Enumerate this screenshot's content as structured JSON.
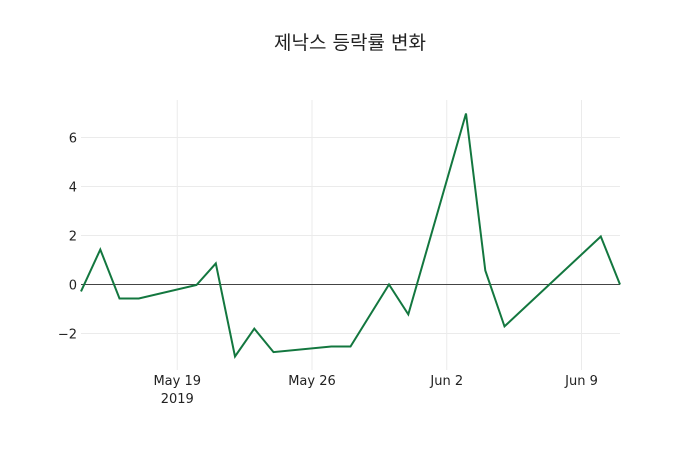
{
  "chart_data": {
    "type": "line",
    "title": "제낙스 등락률 변화",
    "xlabel": "",
    "ylabel": "",
    "x": [
      "2019-05-14",
      "2019-05-15",
      "2019-05-16",
      "2019-05-17",
      "2019-05-20",
      "2019-05-21",
      "2019-05-22",
      "2019-05-23",
      "2019-05-24",
      "2019-05-27",
      "2019-05-28",
      "2019-05-30",
      "2019-05-31",
      "2019-06-03",
      "2019-06-04",
      "2019-06-05",
      "2019-06-10",
      "2019-06-11"
    ],
    "series": [
      {
        "name": "등락률",
        "color": "#13773f",
        "values": [
          -0.28,
          1.43,
          -0.57,
          -0.57,
          -0.02,
          0.86,
          -2.94,
          -1.8,
          -2.76,
          -2.53,
          -2.53,
          0.0,
          -1.22,
          6.98,
          0.57,
          -1.71,
          1.96,
          0.0
        ]
      }
    ],
    "xticks": [
      {
        "date": "2019-05-19",
        "label": "May 19",
        "sublabel": "2019"
      },
      {
        "date": "2019-05-26",
        "label": "May 26",
        "sublabel": ""
      },
      {
        "date": "2019-06-02",
        "label": "Jun 2",
        "sublabel": ""
      },
      {
        "date": "2019-06-09",
        "label": "Jun 9",
        "sublabel": ""
      }
    ],
    "yticks": [
      -2,
      0,
      2,
      4,
      6
    ],
    "ytick_labels": [
      "−2",
      "0",
      "2",
      "4",
      "6"
    ],
    "ylim": [
      -3.6,
      7.5
    ],
    "xlim": [
      "2019-05-14",
      "2019-06-11"
    ],
    "grid": true,
    "zeroline": true,
    "legend": "none"
  }
}
